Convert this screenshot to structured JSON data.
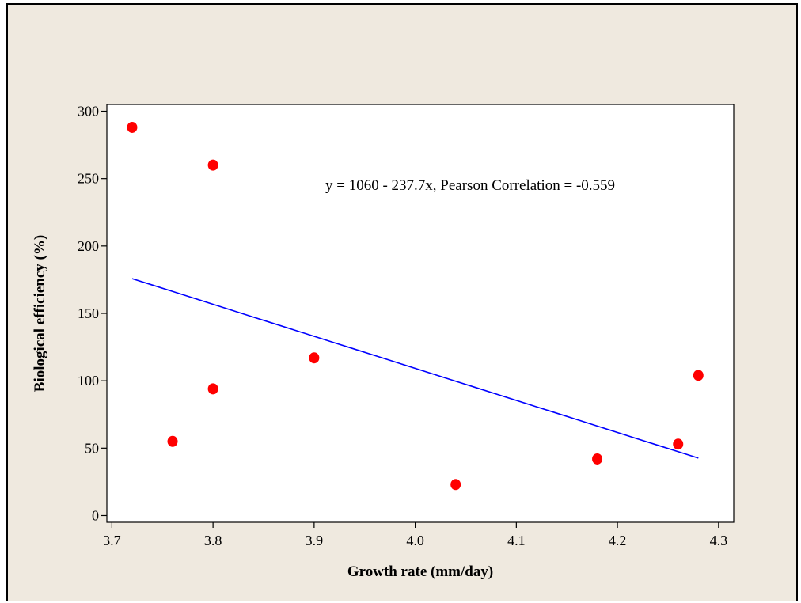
{
  "chart_data": {
    "type": "scatter",
    "xlabel": "Growth rate (mm/day)",
    "ylabel": "Biological efficiency (%)",
    "xlim": [
      3.695,
      4.315
    ],
    "ylim": [
      -5,
      305
    ],
    "x_ticks": [
      "3.7",
      "3.8",
      "3.9",
      "4.0",
      "4.1",
      "4.2",
      "4.3"
    ],
    "y_ticks": [
      "0",
      "50",
      "100",
      "150",
      "200",
      "250",
      "300"
    ],
    "grid": false,
    "points": [
      {
        "x": 3.72,
        "y": 288
      },
      {
        "x": 3.76,
        "y": 55
      },
      {
        "x": 3.8,
        "y": 260
      },
      {
        "x": 3.8,
        "y": 94
      },
      {
        "x": 3.9,
        "y": 117
      },
      {
        "x": 4.04,
        "y": 23
      },
      {
        "x": 4.18,
        "y": 42
      },
      {
        "x": 4.26,
        "y": 53
      },
      {
        "x": 4.28,
        "y": 104
      }
    ],
    "fit_line": {
      "intercept": 1060,
      "slope": -237.7,
      "x_range": [
        3.72,
        4.28
      ]
    },
    "annotation": "y =  1060 - 237.7x, Pearson Correlation = -0.559",
    "colors": {
      "points": "#ff0000",
      "line": "#0000ff",
      "background": "#efe9df",
      "plot_area": "#ffffff"
    }
  }
}
